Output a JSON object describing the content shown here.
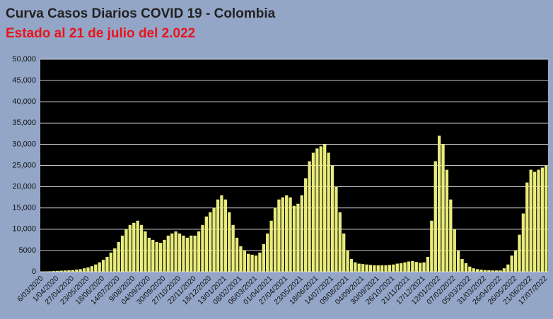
{
  "chart_data": {
    "type": "bar",
    "title": "Curva Casos Diarios COVID 19 - Colombia",
    "subtitle": "Estado al 21 de julio del 2.022",
    "categories": [
      "6/03/2020",
      null,
      null,
      null,
      "1/04/2020",
      null,
      null,
      null,
      "27/04/2020",
      null,
      null,
      null,
      "23/05/2020",
      null,
      null,
      null,
      "18/06/2020",
      null,
      null,
      null,
      "14/07/2020",
      null,
      null,
      null,
      "9/08/2020",
      null,
      null,
      null,
      "04/09/2020",
      null,
      null,
      null,
      "30/09/2020",
      null,
      null,
      null,
      "27/10/2020",
      null,
      null,
      null,
      "22/11/2020",
      null,
      null,
      null,
      "18/12/2020",
      null,
      null,
      null,
      "13/01/2021",
      null,
      null,
      null,
      "08/02/2021",
      null,
      null,
      null,
      "06/03/2021",
      null,
      null,
      null,
      "01/04/2021",
      null,
      null,
      null,
      "27/04/2021",
      null,
      null,
      null,
      "23/05/2021",
      null,
      null,
      null,
      "18/06/2021",
      null,
      null,
      null,
      "14/07/2021",
      null,
      null,
      null,
      "09/08/2021",
      null,
      null,
      null,
      "04/09/2021",
      null,
      null,
      null,
      "30/09/2021",
      null,
      null,
      null,
      "26/10/2021",
      null,
      null,
      null,
      "21/11/2021",
      null,
      null,
      null,
      "17/12/2021",
      null,
      null,
      null,
      "12/01/2022",
      null,
      null,
      null,
      "07/02/2022",
      null,
      null,
      null,
      "05/03/2022",
      null,
      null,
      null,
      "31/03/2022",
      null,
      null,
      null,
      "26/04/2022",
      null,
      null,
      null,
      "26/05/2022",
      null,
      null,
      null,
      "21/06/2022",
      null,
      null,
      null,
      "17/07/2022"
    ],
    "values": [
      0,
      50,
      100,
      150,
      200,
      250,
      300,
      350,
      400,
      500,
      600,
      800,
      1000,
      1300,
      1700,
      2200,
      2800,
      3500,
      4500,
      5500,
      7000,
      8500,
      10000,
      11000,
      11500,
      12000,
      11000,
      9500,
      8000,
      7500,
      7000,
      6800,
      7500,
      8500,
      9000,
      9500,
      9000,
      8500,
      8000,
      8500,
      8500,
      9500,
      11000,
      13000,
      14000,
      15000,
      17000,
      18000,
      17000,
      14000,
      11000,
      8000,
      6000,
      5000,
      4200,
      4000,
      3800,
      4500,
      6500,
      9000,
      12000,
      15000,
      17000,
      17500,
      18000,
      17500,
      15500,
      16000,
      18000,
      22000,
      26000,
      28000,
      29000,
      29500,
      30000,
      28000,
      25000,
      20000,
      14000,
      9000,
      5000,
      3000,
      2200,
      1900,
      1800,
      1700,
      1600,
      1500,
      1500,
      1500,
      1500,
      1600,
      1700,
      1900,
      2000,
      2200,
      2400,
      2500,
      2300,
      2100,
      2200,
      3500,
      12000,
      26000,
      32000,
      30000,
      24000,
      17000,
      10000,
      5000,
      3000,
      2000,
      1200,
      800,
      600,
      500,
      400,
      350,
      300,
      300,
      300,
      800,
      1700,
      3800,
      5000,
      8700,
      13700,
      21000,
      24000,
      23500,
      24000,
      24500,
      25000
    ],
    "color": "#e9ec7c",
    "ylim": [
      0,
      50000
    ],
    "yticks": [
      0,
      5000,
      {
        "value": 10000,
        "label": "10,000"
      },
      {
        "value": 15000,
        "label": "15,000"
      },
      {
        "value": 20000,
        "label": "20,000"
      },
      {
        "value": 25000,
        "label": "25,000"
      },
      {
        "value": 30000,
        "label": "30,000"
      },
      {
        "value": 35000,
        "label": "35,000"
      },
      {
        "value": 40000,
        "label": "40,000"
      },
      {
        "value": 45000,
        "label": "45,000"
      },
      {
        "value": 50000,
        "label": "50,000"
      }
    ],
    "grid": true
  }
}
